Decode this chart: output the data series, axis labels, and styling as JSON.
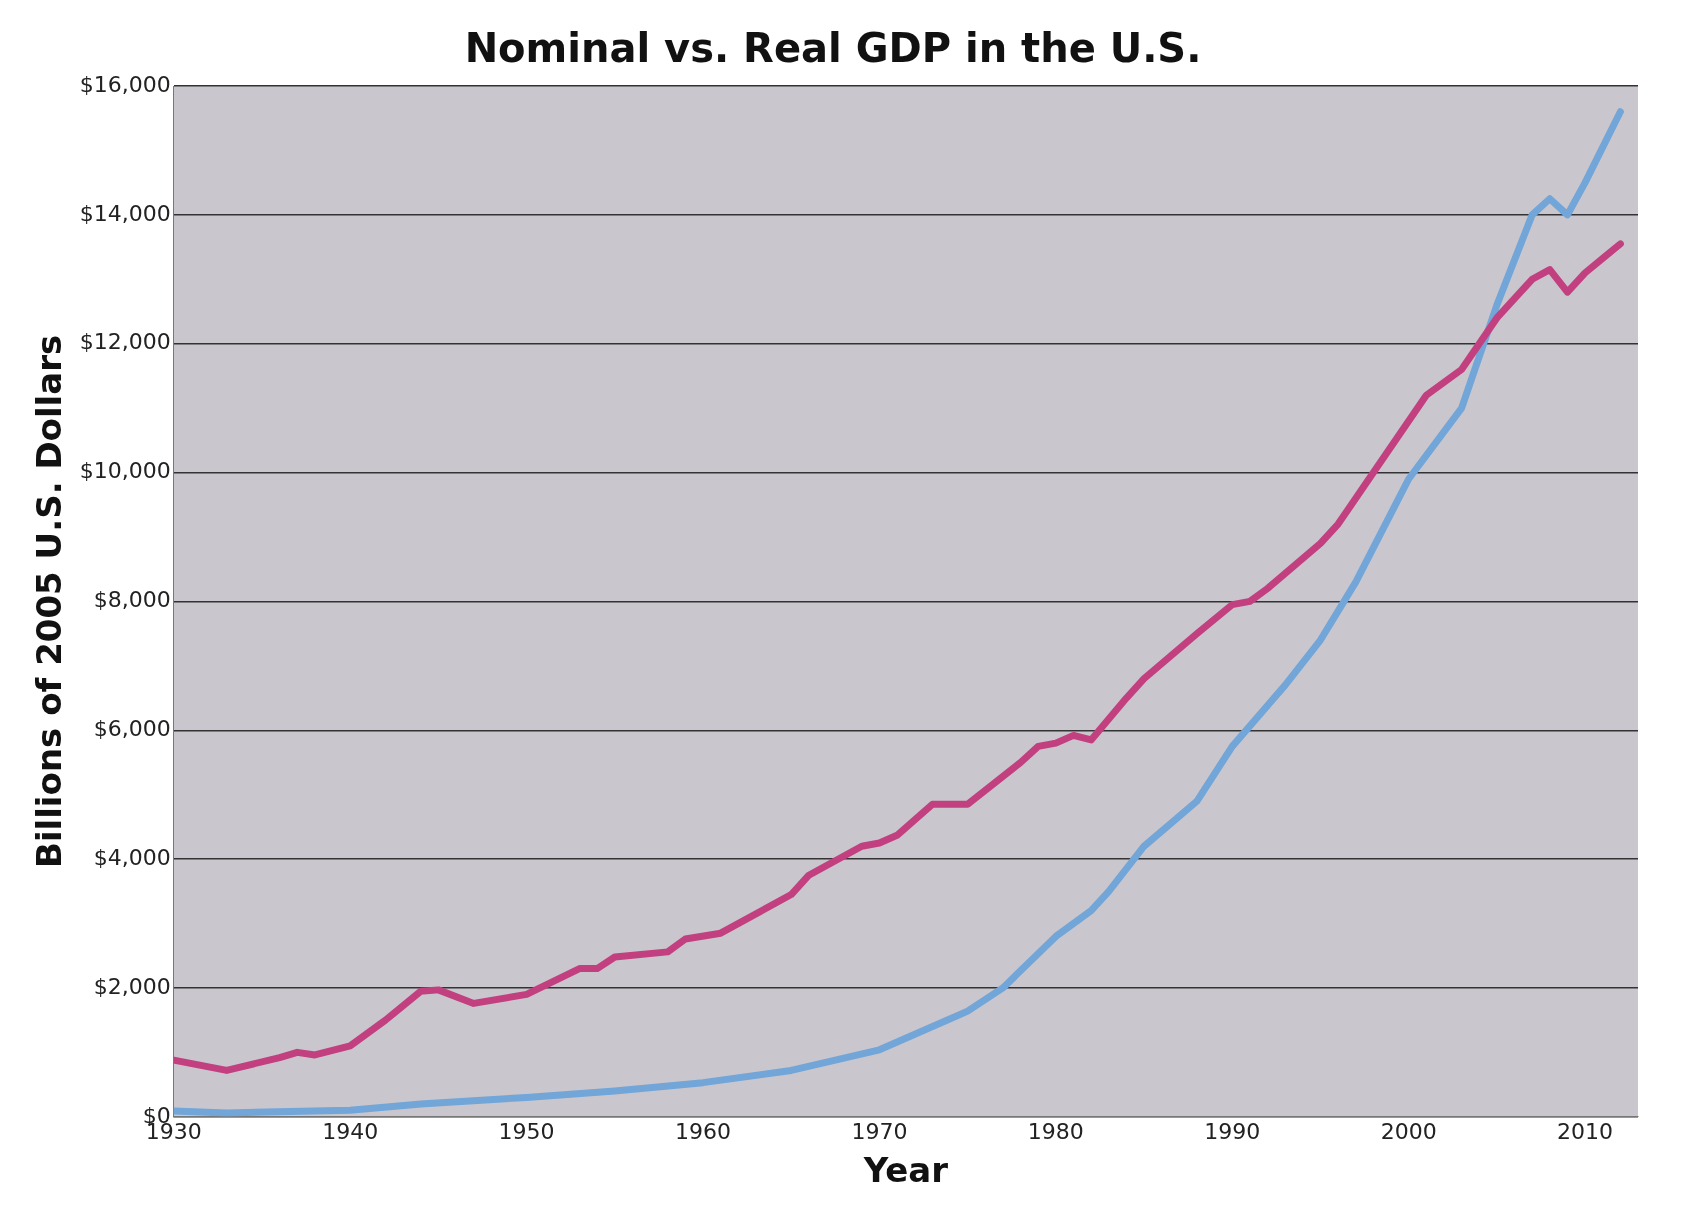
{
  "chart_data": {
    "type": "line",
    "title": "Nominal vs. Real GDP in the U.S.",
    "xlabel": "Year",
    "ylabel": "Billions of 2005 U.S. Dollars",
    "xlim": [
      1930,
      2013
    ],
    "xticks": [
      1930,
      1940,
      1950,
      1960,
      1970,
      1980,
      1990,
      2000,
      2010
    ],
    "ylim": [
      0,
      16000
    ],
    "yticks": [
      {
        "value": 0,
        "label": "$0"
      },
      {
        "value": 2000,
        "label": "$2,000"
      },
      {
        "value": 4000,
        "label": "$4,000"
      },
      {
        "value": 6000,
        "label": "$6,000"
      },
      {
        "value": 8000,
        "label": "$8,000"
      },
      {
        "value": 10000,
        "label": "$10,000"
      },
      {
        "value": 12000,
        "label": "$12,000"
      },
      {
        "value": 14000,
        "label": "$14,000"
      },
      {
        "value": 16000,
        "label": "$16,000"
      }
    ],
    "grid": "y",
    "legend": false,
    "series": [
      {
        "color": "#c2407f",
        "x": [
          1930,
          1933,
          1936,
          1937,
          1938,
          1940,
          1942,
          1944,
          1945,
          1947,
          1950,
          1953,
          1954,
          1955,
          1958,
          1959,
          1961,
          1965,
          1966,
          1969,
          1970,
          1971,
          1973,
          1975,
          1978,
          1979,
          1980,
          1981,
          1982,
          1984,
          1985,
          1988,
          1990,
          1991,
          1992,
          1995,
          1996,
          1998,
          2000,
          2001,
          2003,
          2005,
          2007,
          2008,
          2009,
          2010,
          2012
        ],
        "values": [
          880,
          720,
          920,
          1000,
          960,
          1100,
          1500,
          1950,
          1970,
          1760,
          1900,
          2300,
          2300,
          2480,
          2560,
          2760,
          2850,
          3450,
          3750,
          4200,
          4250,
          4370,
          4850,
          4850,
          5500,
          5750,
          5800,
          5920,
          5850,
          6500,
          6800,
          7500,
          7950,
          8000,
          8200,
          8900,
          9200,
          10000,
          10800,
          11200,
          11600,
          12400,
          13000,
          13150,
          12800,
          13100,
          13550
        ]
      },
      {
        "color": "#72a5d8",
        "x": [
          1930,
          1933,
          1940,
          1944,
          1950,
          1955,
          1960,
          1965,
          1970,
          1975,
          1977,
          1980,
          1982,
          1983,
          1985,
          1988,
          1990,
          1993,
          1995,
          1997,
          2000,
          2003,
          2005,
          2007,
          2008,
          2009,
          2010,
          2012
        ],
        "values": [
          90,
          60,
          100,
          200,
          300,
          400,
          530,
          720,
          1040,
          1640,
          2000,
          2800,
          3200,
          3500,
          4200,
          4900,
          5750,
          6700,
          7400,
          8300,
          9900,
          11000,
          12600,
          14000,
          14250,
          14000,
          14500,
          15600
        ]
      }
    ]
  }
}
